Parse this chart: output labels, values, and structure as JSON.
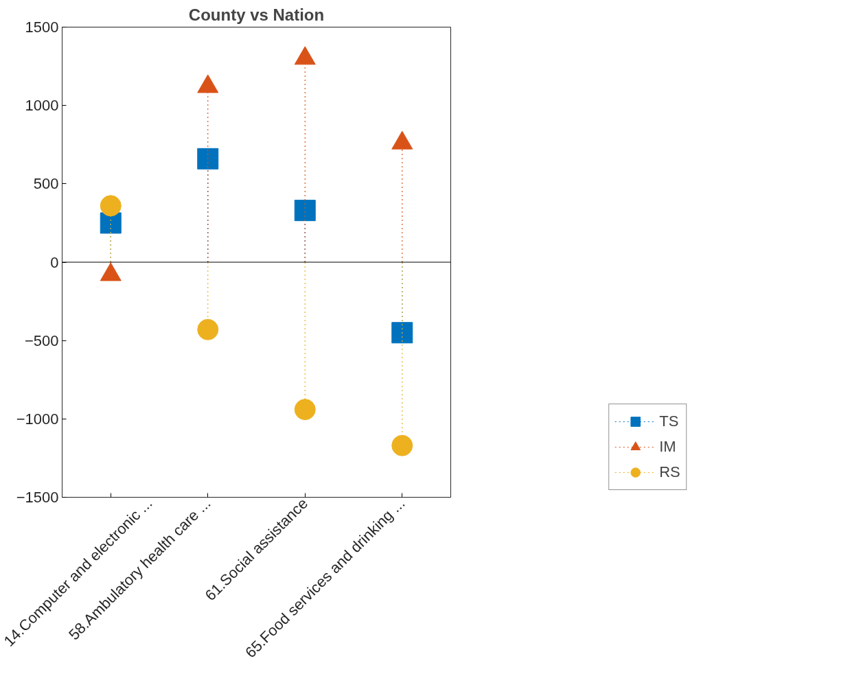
{
  "chart_data": {
    "type": "lollipop",
    "title": "County vs Nation",
    "categories": [
      "14.Computer and electronic ...",
      "58.Ambulatory health care ...",
      "61.Social assistance",
      "65.Food services and drinking ..."
    ],
    "series": [
      {
        "name": "TS",
        "color": "#0072bd",
        "marker": "square",
        "values": [
          250,
          660,
          330,
          -450
        ]
      },
      {
        "name": "IM",
        "color": "#d95319",
        "marker": "triangle",
        "values": [
          -80,
          1120,
          1300,
          760
        ]
      },
      {
        "name": "RS",
        "color": "#edb120",
        "marker": "circle",
        "values": [
          360,
          -430,
          -940,
          -1170
        ]
      }
    ],
    "ylim": [
      -1500,
      1500
    ],
    "yticks": [
      -1500,
      -1000,
      -500,
      0,
      500,
      1000,
      1500
    ],
    "ref_lines": [
      {
        "axis": "y",
        "value": 0,
        "color": "#000000"
      }
    ],
    "line_style": "dotted",
    "legend": "right",
    "grid": false
  }
}
